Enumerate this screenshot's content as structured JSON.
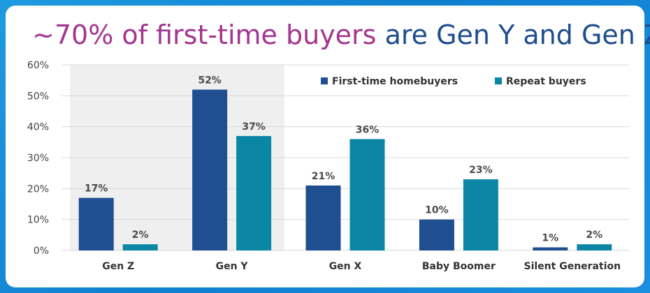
{
  "title": {
    "highlight": "~70% of first-time buyers",
    "rest": " are Gen Y and Gen Z"
  },
  "colors": {
    "first_time": "#1f4e91",
    "repeat": "#0b86a4",
    "highlight_band": "#efefef",
    "title_highlight": "#a3358f",
    "title_rest": "#1d4d8c"
  },
  "chart_data": {
    "type": "bar",
    "categories": [
      "Gen Z",
      "Gen Y",
      "Gen X",
      "Baby Boomer",
      "Silent Generation"
    ],
    "series": [
      {
        "name": "First-time homebuyers",
        "values": [
          17,
          52,
          21,
          10,
          1
        ],
        "labels": [
          "17%",
          "52%",
          "21%",
          "10%",
          "1%"
        ]
      },
      {
        "name": "Repeat buyers",
        "values": [
          2,
          37,
          36,
          23,
          2
        ],
        "labels": [
          "2%",
          "37%",
          "36%",
          "23%",
          "2%"
        ]
      }
    ],
    "ylim": [
      0,
      60
    ],
    "yticks": [
      "0%",
      "10%",
      "20%",
      "30%",
      "40%",
      "50%",
      "60%"
    ],
    "highlighted_categories": [
      "Gen Z",
      "Gen Y"
    ],
    "grid": true,
    "legend": "top-right"
  }
}
